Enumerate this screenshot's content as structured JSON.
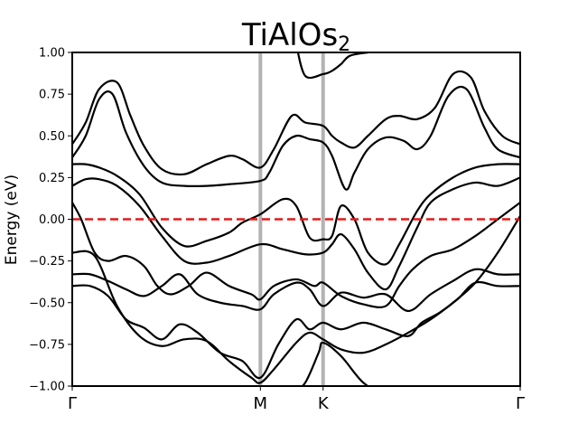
{
  "chart_data": {
    "type": "line",
    "title": "TiAlOs",
    "title_subscript": "2",
    "xlabel": "",
    "ylabel": "Energy (eV)",
    "ylim": [
      -1.0,
      1.0
    ],
    "yticks": [
      "1.00",
      "0.75",
      "0.50",
      "0.25",
      "0.00",
      "−0.25",
      "−0.50",
      "−0.75",
      "−1.00"
    ],
    "ytick_values": [
      1.0,
      0.75,
      0.5,
      0.25,
      0.0,
      -0.25,
      -0.5,
      -0.75,
      -1.0
    ],
    "xlim": [
      0,
      1
    ],
    "kpoint_labels": [
      "Γ",
      "M",
      "K",
      "Γ"
    ],
    "kpoint_positions": [
      0.0,
      0.42,
      0.56,
      1.0
    ],
    "fermi_level": 0.0,
    "colors": {
      "bands": "#000000",
      "kpath_lines": "#b3b3b3",
      "fermi": "#e41a1c"
    },
    "series": [
      {
        "x": [
          0.0,
          0.03,
          0.06,
          0.1,
          0.13,
          0.16,
          0.2,
          0.25,
          0.3,
          0.35,
          0.38,
          0.42,
          0.45,
          0.49,
          0.52,
          0.56,
          0.58,
          0.6,
          0.63,
          0.66,
          0.7,
          0.73,
          0.77,
          0.81,
          0.85,
          0.89,
          0.92,
          0.96,
          1.0
        ],
        "values": [
          0.45,
          0.58,
          0.78,
          0.82,
          0.62,
          0.44,
          0.3,
          0.27,
          0.33,
          0.38,
          0.36,
          0.31,
          0.42,
          0.62,
          0.58,
          0.56,
          0.5,
          0.46,
          0.43,
          0.5,
          0.6,
          0.62,
          0.6,
          0.67,
          0.87,
          0.85,
          0.65,
          0.5,
          0.45
        ]
      },
      {
        "x": [
          0.0,
          0.03,
          0.06,
          0.09,
          0.12,
          0.16,
          0.2,
          0.25,
          0.3,
          0.35,
          0.42,
          0.44,
          0.47,
          0.5,
          0.53,
          0.56,
          0.58,
          0.61,
          0.63,
          0.66,
          0.7,
          0.74,
          0.77,
          0.8,
          0.84,
          0.88,
          0.92,
          0.95,
          1.0
        ],
        "values": [
          0.37,
          0.5,
          0.72,
          0.75,
          0.52,
          0.32,
          0.22,
          0.2,
          0.2,
          0.21,
          0.23,
          0.28,
          0.44,
          0.5,
          0.48,
          0.46,
          0.38,
          0.18,
          0.28,
          0.42,
          0.49,
          0.47,
          0.42,
          0.5,
          0.74,
          0.78,
          0.55,
          0.42,
          0.37
        ]
      },
      {
        "x": [
          0.0,
          0.03,
          0.06,
          0.1,
          0.15,
          0.2,
          0.25,
          0.3,
          0.35,
          0.38,
          0.42,
          0.47,
          0.5,
          0.53,
          0.56,
          0.58,
          0.6,
          0.63,
          0.66,
          0.7,
          0.73,
          0.77,
          0.8,
          0.85,
          0.9,
          0.95,
          1.0
        ],
        "values": [
          0.33,
          0.33,
          0.31,
          0.26,
          0.15,
          -0.05,
          -0.16,
          -0.13,
          -0.08,
          -0.02,
          0.03,
          0.12,
          0.08,
          -0.11,
          -0.12,
          -0.1,
          0.08,
          0.0,
          -0.2,
          -0.27,
          -0.15,
          0.05,
          0.15,
          0.25,
          0.31,
          0.33,
          0.33
        ]
      },
      {
        "x": [
          0.0,
          0.03,
          0.06,
          0.1,
          0.15,
          0.2,
          0.25,
          0.3,
          0.35,
          0.42,
          0.47,
          0.52,
          0.56,
          0.58,
          0.6,
          0.63,
          0.66,
          0.7,
          0.73,
          0.77,
          0.8,
          0.85,
          0.9,
          0.95,
          1.0
        ],
        "values": [
          0.2,
          0.24,
          0.24,
          0.2,
          0.08,
          -0.1,
          -0.25,
          -0.26,
          -0.22,
          -0.15,
          -0.18,
          -0.21,
          -0.2,
          -0.15,
          -0.09,
          -0.18,
          -0.32,
          -0.42,
          -0.28,
          -0.05,
          0.1,
          0.18,
          0.22,
          0.2,
          0.25
        ]
      },
      {
        "x": [
          0.0,
          0.02,
          0.05,
          0.08,
          0.12,
          0.16,
          0.19,
          0.22,
          0.26,
          0.3,
          0.35,
          0.4,
          0.42,
          0.45,
          0.5,
          0.54,
          0.56,
          0.6,
          0.65,
          0.7,
          0.73,
          0.76,
          0.8,
          0.85,
          0.9,
          0.95,
          1.0
        ],
        "values": [
          0.1,
          0.0,
          -0.2,
          -0.25,
          -0.22,
          -0.28,
          -0.4,
          -0.45,
          -0.4,
          -0.32,
          -0.4,
          -0.45,
          -0.48,
          -0.4,
          -0.36,
          -0.4,
          -0.38,
          -0.46,
          -0.51,
          -0.52,
          -0.4,
          -0.3,
          -0.22,
          -0.18,
          -0.1,
          0.0,
          0.1
        ]
      },
      {
        "x": [
          0.0,
          0.04,
          0.08,
          0.12,
          0.16,
          0.2,
          0.24,
          0.28,
          0.33,
          0.38,
          0.42,
          0.45,
          0.5,
          0.53,
          0.56,
          0.6,
          0.65,
          0.7,
          0.75,
          0.8,
          0.85,
          0.9,
          0.95,
          1.0
        ],
        "values": [
          -0.33,
          -0.33,
          -0.37,
          -0.42,
          -0.46,
          -0.4,
          -0.33,
          -0.45,
          -0.5,
          -0.52,
          -0.54,
          -0.45,
          -0.38,
          -0.42,
          -0.52,
          -0.44,
          -0.47,
          -0.45,
          -0.55,
          -0.45,
          -0.37,
          -0.3,
          -0.33,
          -0.33
        ]
      },
      {
        "x": [
          0.0,
          0.04,
          0.08,
          0.12,
          0.16,
          0.2,
          0.24,
          0.28,
          0.33,
          0.38,
          0.42,
          0.46,
          0.5,
          0.53,
          0.56,
          0.6,
          0.65,
          0.7,
          0.75,
          0.78,
          0.82,
          0.86,
          0.9,
          0.95,
          1.0
        ],
        "values": [
          -0.4,
          -0.4,
          -0.46,
          -0.6,
          -0.65,
          -0.72,
          -0.63,
          -0.68,
          -0.8,
          -0.85,
          -0.95,
          -0.75,
          -0.6,
          -0.66,
          -0.62,
          -0.66,
          -0.62,
          -0.66,
          -0.7,
          -0.62,
          -0.56,
          -0.48,
          -0.38,
          -0.4,
          -0.4
        ]
      },
      {
        "x": [
          0.0,
          0.05,
          0.1,
          0.15,
          0.2,
          0.25,
          0.3,
          0.35,
          0.4,
          0.42,
          0.45,
          0.5,
          0.53,
          0.56,
          0.6,
          0.65,
          0.7,
          0.75,
          0.8,
          0.85,
          0.9,
          0.95,
          1.0
        ],
        "values": [
          -0.2,
          -0.22,
          -0.52,
          -0.7,
          -0.76,
          -0.72,
          -0.73,
          -0.85,
          -0.95,
          -0.98,
          -0.9,
          -0.74,
          -0.68,
          -0.72,
          -0.78,
          -0.8,
          -0.75,
          -0.68,
          -0.6,
          -0.5,
          -0.38,
          -0.2,
          0.02
        ]
      },
      {
        "x": [
          0.49,
          0.52,
          0.55,
          0.56,
          0.6,
          0.65,
          0.7,
          0.75,
          0.8,
          0.85
        ],
        "values": [
          -1.05,
          -0.98,
          -0.8,
          -0.74,
          -0.82,
          -0.98,
          -1.05,
          -1.05,
          -1.05,
          -1.05
        ]
      },
      {
        "x": [
          0.5,
          0.52,
          0.56,
          0.58,
          0.6,
          0.62,
          0.66
        ],
        "values": [
          1.05,
          0.86,
          0.87,
          0.89,
          0.93,
          0.98,
          1.0
        ]
      }
    ]
  }
}
